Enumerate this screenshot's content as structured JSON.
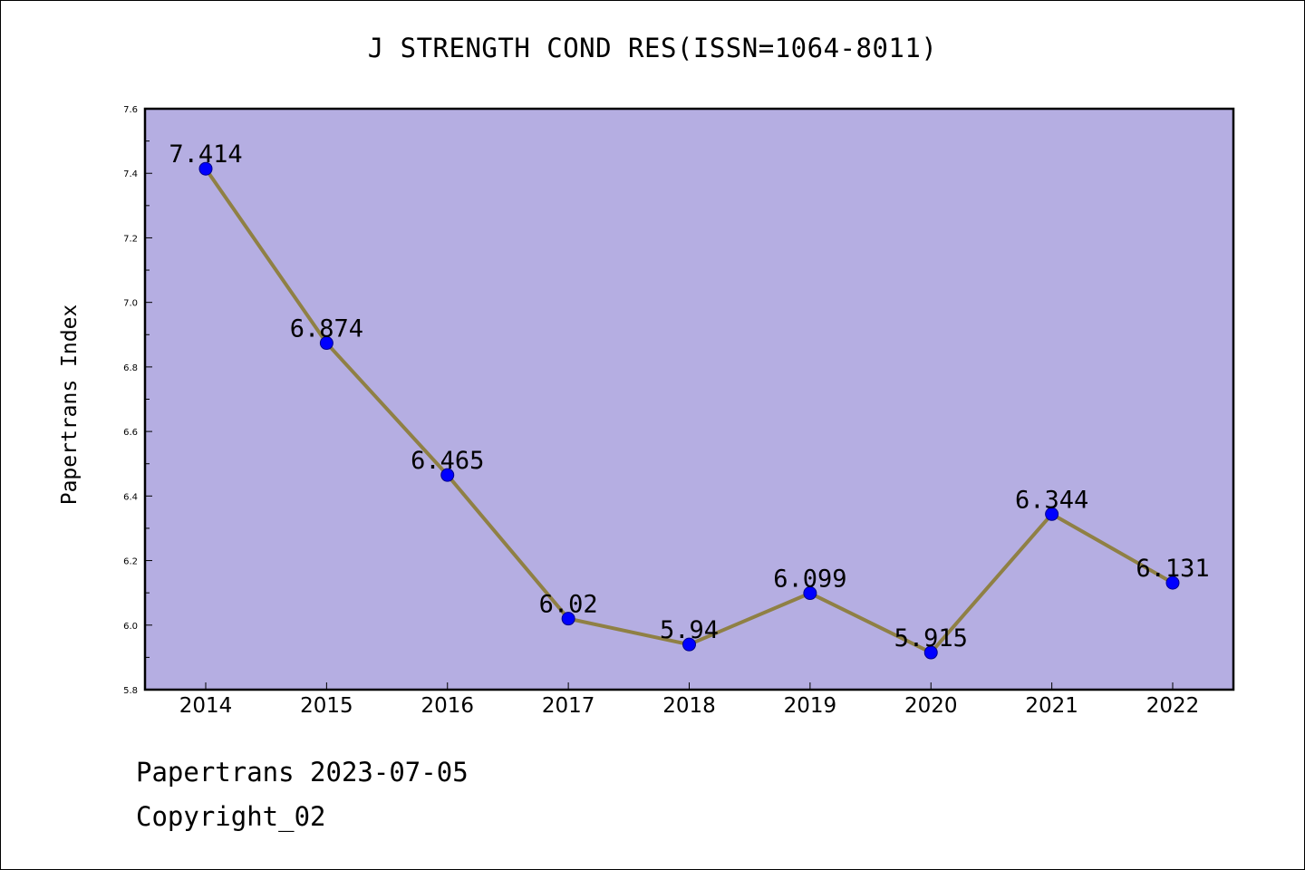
{
  "chart_data": {
    "type": "line",
    "title": "J STRENGTH COND RES(ISSN=1064-8011)",
    "xlabel": "",
    "ylabel": "Papertrans Index",
    "categories": [
      "2014",
      "2015",
      "2016",
      "2017",
      "2018",
      "2019",
      "2020",
      "2021",
      "2022"
    ],
    "series": [
      {
        "values": [
          7.414,
          6.874,
          6.465,
          6.02,
          5.94,
          6.099,
          5.915,
          6.344,
          6.131
        ],
        "labels": [
          "7.414",
          "6.874",
          "6.465",
          "6.02",
          "5.94",
          "6.099",
          "5.915",
          "6.344",
          "6.131"
        ]
      }
    ],
    "ylim": [
      5.8,
      7.6
    ],
    "yticks": [
      "5.8",
      "6.0",
      "6.2",
      "6.4",
      "6.6",
      "6.8",
      "7.0",
      "7.2",
      "7.4",
      "7.6"
    ],
    "grid": false,
    "colors": {
      "plot_background": "#b5aee2",
      "line": "#8f8044",
      "marker": "#0000ff",
      "marker_edge": "#00008b"
    }
  },
  "footer": {
    "date_line": "Papertrans 2023-07-05",
    "copyright": "Copyright_02"
  }
}
